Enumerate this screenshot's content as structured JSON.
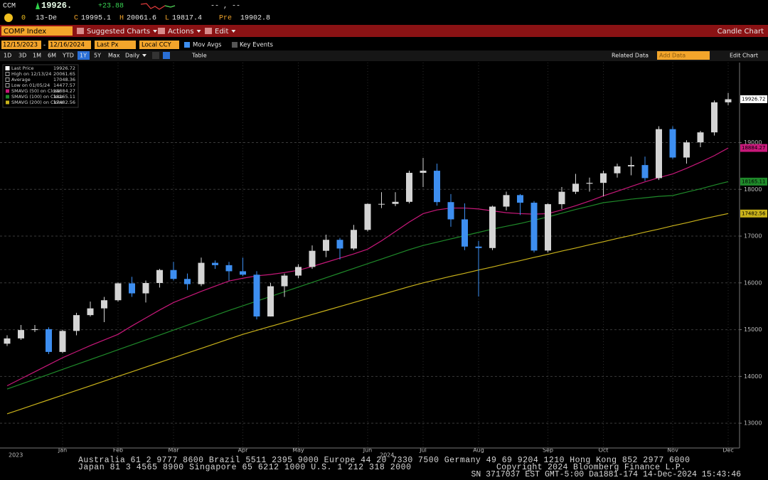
{
  "header": {
    "ticker": "CCM",
    "last": "19926.",
    "change": "+23.88",
    "bid_ask": "-- , --",
    "row2": [
      "0",
      "13-De",
      "C",
      "19995.1",
      "H",
      "20061.6",
      "L",
      "19817.4",
      "Pre",
      "19902.8"
    ]
  },
  "toolbar": {
    "security": "COMP Index",
    "menus": [
      "Suggested Charts",
      "Actions",
      "Edit"
    ],
    "chart_type": "Candle Chart"
  },
  "controls": {
    "start": "12/15/2023",
    "separator": "-",
    "end": "12/16/2024",
    "field": "Last Px",
    "currency": "Local CCY",
    "toggles": [
      "Mov Avgs",
      "Key Events"
    ],
    "periods": [
      "1D",
      "3D",
      "1M",
      "6M",
      "YTD",
      "1Y",
      "5Y",
      "Max"
    ],
    "selected_period": 5,
    "frequency": "Daily",
    "table": "Table",
    "right": [
      "Related Data",
      "Add Data",
      "Edit Chart"
    ]
  },
  "chart_data": {
    "type": "candlestick",
    "categories": [
      null,
      null,
      null,
      null,
      "Jan",
      null,
      null,
      null,
      "Feb",
      null,
      null,
      null,
      "Mar",
      null,
      null,
      null,
      null,
      "Apr",
      null,
      null,
      null,
      "May",
      null,
      null,
      null,
      null,
      "Jun",
      null,
      null,
      null,
      "Jul",
      null,
      null,
      null,
      "Aug",
      null,
      null,
      null,
      null,
      "Sep",
      null,
      null,
      null,
      "Oct",
      null,
      null,
      null,
      null,
      "Nov",
      null,
      null,
      null,
      "Dec"
    ],
    "years": [
      "2023",
      "2024"
    ],
    "open": [
      14700,
      14813,
      14992,
      15011,
      14524,
      14973,
      15311,
      15455,
      15629,
      15990,
      15776,
      15997,
      16275,
      16085,
      15973,
      16429,
      16379,
      16249,
      16175,
      15282,
      15928,
      16156,
      16341,
      16686,
      16921,
      16735,
      17133,
      17689,
      17689,
      17733,
      18353,
      18398,
      17727,
      17358,
      16776,
      16745,
      17631,
      17877,
      17714,
      16691,
      17683,
      17948,
      18120,
      18138,
      18343,
      18490,
      18519,
      18240,
      19287,
      18680,
      19004,
      19218,
      19860
    ],
    "high": [
      14880,
      15100,
      15100,
      15050,
      15000,
      15360,
      15600,
      15700,
      16010,
      16130,
      16050,
      16300,
      16450,
      16200,
      16540,
      16480,
      16450,
      16540,
      16250,
      16000,
      16200,
      16400,
      16800,
      17030,
      16960,
      17240,
      17700,
      17940,
      17940,
      18400,
      18671,
      18550,
      17900,
      17700,
      16900,
      17650,
      17950,
      17900,
      17750,
      17700,
      18050,
      18330,
      18250,
      18400,
      18550,
      18700,
      18700,
      19350,
      19350,
      19050,
      19250,
      19900,
      20061.65
    ],
    "low": [
      14650,
      14780,
      14950,
      14477.57,
      14500,
      14880,
      15280,
      15160,
      15600,
      15700,
      15580,
      15900,
      16050,
      15850,
      15930,
      16300,
      16050,
      16150,
      15220,
      15280,
      15700,
      16100,
      16300,
      16550,
      16500,
      16700,
      17100,
      17600,
      17640,
      17700,
      18050,
      17650,
      17200,
      16700,
      15708,
      16700,
      17550,
      17450,
      16650,
      16650,
      17580,
      17900,
      17950,
      17850,
      18250,
      18300,
      18180,
      18200,
      18650,
      18550,
      18900,
      19150,
      19800
    ],
    "close": [
      14813,
      14992,
      15011,
      14524,
      14973,
      15311,
      15455,
      15629,
      15990,
      15776,
      15997,
      16275,
      16085,
      15973,
      16429,
      16379,
      16249,
      16175,
      15282,
      15928,
      16156,
      16341,
      16686,
      16921,
      16735,
      17133,
      17689,
      17689,
      17733,
      18353,
      18398,
      17727,
      17358,
      16776,
      16745,
      17631,
      17877,
      17714,
      16691,
      17683,
      17948,
      18120,
      18138,
      18343,
      18490,
      18519,
      18240,
      19287,
      18680,
      19004,
      19218,
      19860,
      19926.72
    ],
    "up_color": "#d4d4d4",
    "down_color": "#3d8ef0",
    "stats": [
      {
        "name": "Last Price",
        "value": 19926.72
      },
      {
        "name": "High on 12/13/24",
        "value": 20061.65
      },
      {
        "name": "Average",
        "value": 17048.36
      },
      {
        "name": "Low on 01/05/24",
        "value": 14477.57
      }
    ],
    "moving_averages": [
      {
        "name": "SMAVG (50) on Close",
        "color": "#c8187a",
        "last": 18884.27,
        "values": [
          13800,
          13950,
          14100,
          14250,
          14400,
          14530,
          14660,
          14780,
          14900,
          15080,
          15250,
          15420,
          15580,
          15700,
          15820,
          15930,
          16040,
          16100,
          16150,
          16180,
          16220,
          16270,
          16350,
          16440,
          16530,
          16620,
          16720,
          16900,
          17100,
          17300,
          17480,
          17560,
          17600,
          17600,
          17580,
          17540,
          17500,
          17480,
          17470,
          17480,
          17560,
          17650,
          17750,
          17860,
          17960,
          18060,
          18160,
          18250,
          18330,
          18450,
          18580,
          18720,
          18884.27
        ]
      },
      {
        "name": "SMAVG (100) on Close",
        "color": "#1f8a2a",
        "last": 18165.11,
        "values": [
          13730,
          13835,
          13940,
          14045,
          14150,
          14255,
          14360,
          14465,
          14570,
          14675,
          14780,
          14885,
          14990,
          15095,
          15200,
          15305,
          15410,
          15510,
          15610,
          15710,
          15810,
          15910,
          16010,
          16110,
          16210,
          16310,
          16410,
          16510,
          16610,
          16710,
          16800,
          16870,
          16940,
          17010,
          17080,
          17150,
          17210,
          17270,
          17340,
          17410,
          17490,
          17570,
          17640,
          17715,
          17750,
          17790,
          17820,
          17850,
          17867,
          17940,
          18010,
          18090,
          18165.11
        ]
      },
      {
        "name": "SMAVG (200) on Close",
        "color": "#c9b21a",
        "last": 17482.56,
        "values": [
          13200,
          13300,
          13400,
          13500,
          13600,
          13700,
          13800,
          13900,
          14000,
          14100,
          14200,
          14300,
          14400,
          14500,
          14600,
          14700,
          14800,
          14900,
          14985,
          15070,
          15155,
          15240,
          15325,
          15410,
          15495,
          15580,
          15665,
          15750,
          15835,
          15920,
          16000,
          16070,
          16140,
          16205,
          16275,
          16340,
          16410,
          16475,
          16545,
          16610,
          16680,
          16745,
          16815,
          16880,
          16950,
          17015,
          17085,
          17150,
          17220,
          17285,
          17355,
          17420,
          17482.56
        ]
      }
    ],
    "ylim": [
      12470,
      20710
    ],
    "yticks": [
      13000,
      14000,
      15000,
      16000,
      17000,
      18000,
      19000
    ],
    "grid": true
  },
  "footer": {
    "lines": [
      "Australia 61 2 9777 8600 Brazil 5511 2395 9000 Europe 44 20 7330 7500 Germany 49 69 9204 1210 Hong Kong 852 2977 6000",
      "Japan 81 3 4565 8900 Singapore 65 6212 1000 U.S. 1 212 318 2000"
    ],
    "copyright": "Copyright 2024 Bloomberg Finance L.P.",
    "session": "SN 3717037 EST GMT-5:00 Da1881-174 14-Dec-2024 15:43:46"
  }
}
